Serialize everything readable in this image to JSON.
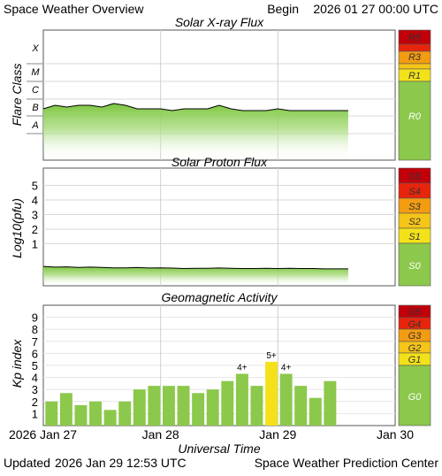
{
  "header": {
    "title": "Space Weather Overview",
    "begin_label": "Begin",
    "begin_date": "2026 01 27 00:00 UTC"
  },
  "footer": {
    "updated_label": "Updated",
    "updated_date": "2026 Jan 29 12:53 UTC",
    "credit": "Space Weather Prediction Center"
  },
  "colors": {
    "plot_green": "#8fd156",
    "bar_green": "#8cc84b",
    "bar_yellow": "#f4e11a",
    "scale_green": "#8cc84b",
    "scale_yellow": "#f3e21a",
    "scale_gold": "#f5c518",
    "scale_orange": "#f39c12",
    "scale_red": "#e8250c",
    "scale_darkred": "#c1000a"
  },
  "chart_data": [
    {
      "type": "area",
      "title": "Solar X-ray Flux",
      "ylabel": "Flare Class",
      "yticks": [
        "X",
        "M",
        "C",
        "B",
        "A"
      ],
      "scale_labels": [
        "R5",
        "R3",
        "R1",
        "R0"
      ],
      "x": [
        0.0,
        0.1,
        0.2,
        0.3,
        0.4,
        0.5,
        0.6,
        0.7,
        0.8,
        0.9,
        1.0,
        1.1,
        1.2,
        1.3,
        1.4,
        1.5,
        1.6,
        1.7,
        1.8,
        1.9,
        2.0,
        2.1,
        2.2,
        2.3,
        2.4,
        2.5,
        2.6
      ],
      "values": [
        1.4,
        1.6,
        1.5,
        1.6,
        1.6,
        1.5,
        1.7,
        1.6,
        1.4,
        1.4,
        1.4,
        1.3,
        1.4,
        1.4,
        1.4,
        1.6,
        1.4,
        1.3,
        1.3,
        1.3,
        1.4,
        1.3,
        1.3,
        1.3,
        1.3,
        1.3,
        1.3
      ]
    },
    {
      "type": "area",
      "title": "Solar Proton Flux",
      "ylabel": "Log10(pfu)",
      "yticks": [
        "5",
        "4",
        "3",
        "2",
        "1"
      ],
      "scale_labels": [
        "S5",
        "S4",
        "S3",
        "S2",
        "S1",
        "S0"
      ],
      "x": [
        0.0,
        0.1,
        0.2,
        0.3,
        0.4,
        0.5,
        0.6,
        0.7,
        0.8,
        0.9,
        1.0,
        1.1,
        1.2,
        1.3,
        1.4,
        1.5,
        1.6,
        1.7,
        1.8,
        1.9,
        2.0,
        2.1,
        2.2,
        2.3,
        2.4,
        2.5,
        2.6
      ],
      "values": [
        -0.55,
        -0.6,
        -0.58,
        -0.62,
        -0.6,
        -0.62,
        -0.65,
        -0.65,
        -0.63,
        -0.66,
        -0.65,
        -0.67,
        -0.7,
        -0.68,
        -0.68,
        -0.66,
        -0.68,
        -0.7,
        -0.7,
        -0.68,
        -0.7,
        -0.68,
        -0.7,
        -0.7,
        -0.72,
        -0.72,
        -0.72
      ]
    },
    {
      "type": "bar",
      "title": "Geomagnetic Activity",
      "ylabel": "Kp index",
      "yticks": [
        "9",
        "8",
        "7",
        "6",
        "5",
        "4",
        "3",
        "2",
        "1"
      ],
      "scale_labels": [
        "G5",
        "G4",
        "G3",
        "G2",
        "G1",
        "G0"
      ],
      "xlabel": "Universal Time",
      "xticks": [
        "2026 Jan 27",
        "Jan 28",
        "Jan 29",
        "Jan 30"
      ],
      "values": [
        2.0,
        2.7,
        1.7,
        2.0,
        1.3,
        2.0,
        3.0,
        3.3,
        3.3,
        3.3,
        2.7,
        3.0,
        3.7,
        4.3,
        3.3,
        5.3,
        4.3,
        3.3,
        2.3,
        3.7
      ],
      "bar_labels": [
        "",
        "",
        "",
        "",
        "",
        "",
        "",
        "",
        "",
        "",
        "",
        "",
        "",
        "4+",
        "",
        "5+",
        "4+",
        "",
        "",
        ""
      ],
      "ylim": [
        0,
        10
      ]
    }
  ]
}
